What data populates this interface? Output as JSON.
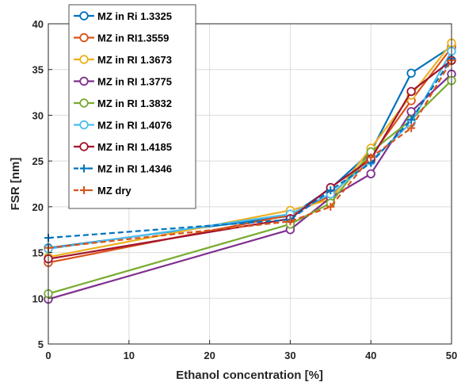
{
  "chart_data": {
    "type": "line",
    "xlabel": "Ethanol concentration [%]",
    "ylabel": "FSR [nm]",
    "xlim": [
      0,
      50
    ],
    "ylim": [
      5,
      40
    ],
    "x_ticks": [
      "0",
      "10",
      "20",
      "30",
      "40",
      "50"
    ],
    "y_ticks": [
      "5",
      "10",
      "15",
      "20",
      "25",
      "30",
      "35",
      "40"
    ],
    "grid": true,
    "legend_position": "top-left",
    "x": [
      0,
      30,
      35,
      40,
      45,
      50
    ],
    "series": [
      {
        "name": "MZ in Ri 1.3325",
        "color": "#0072BD",
        "marker": "circle",
        "dash": "solid",
        "values": [
          15.5,
          19.0,
          22.0,
          26.0,
          34.6,
          37.5
        ]
      },
      {
        "name": "MZ in RI1.3559",
        "color": "#D95319",
        "marker": "circle",
        "dash": "solid",
        "values": [
          13.9,
          19.1,
          21.2,
          25.5,
          31.6,
          37.4
        ]
      },
      {
        "name": "MZ in RI 1.3673",
        "color": "#EDB120",
        "marker": "circle",
        "dash": "solid",
        "values": [
          14.5,
          19.6,
          20.8,
          26.4,
          32.2,
          37.9
        ]
      },
      {
        "name": "MZ in RI 1.3775",
        "color": "#7E2F8E",
        "marker": "circle",
        "dash": "solid",
        "values": [
          9.9,
          17.5,
          21.0,
          23.6,
          30.4,
          34.5
        ]
      },
      {
        "name": "MZ in RI 1.3832",
        "color": "#77AC30",
        "marker": "circle",
        "dash": "solid",
        "values": [
          10.5,
          18.1,
          20.4,
          26.0,
          29.5,
          33.8
        ]
      },
      {
        "name": "MZ in RI 1.4076",
        "color": "#4DBEEE",
        "marker": "circle",
        "dash": "solid",
        "values": [
          15.4,
          19.2,
          21.4,
          25.0,
          29.2,
          37.0
        ]
      },
      {
        "name": "MZ in RI 1.4185",
        "color": "#A2142F",
        "marker": "circle",
        "dash": "solid",
        "values": [
          14.3,
          18.7,
          22.1,
          25.2,
          32.6,
          36.0
        ]
      },
      {
        "name": "MZ in RI 1.4346",
        "color": "#0072BD",
        "marker": "plus",
        "dash": "dashed",
        "values": [
          16.6,
          18.6,
          21.8,
          24.8,
          29.5,
          36.2
        ]
      },
      {
        "name": "MZ dry",
        "color": "#D95319",
        "marker": "plus",
        "dash": "dashed",
        "values": [
          15.5,
          18.4,
          20.0,
          25.4,
          28.6,
          36.0
        ]
      }
    ]
  }
}
